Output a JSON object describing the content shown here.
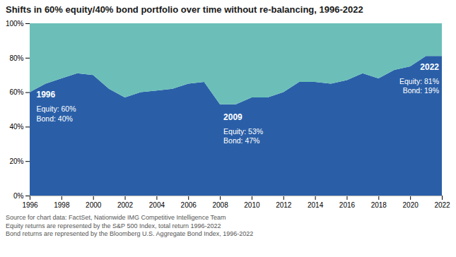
{
  "chart_data": {
    "type": "area",
    "stacked": true,
    "title": "Shifts in 60% equity/40% bond portfolio over time without re-balancing, 1996-2022",
    "x": [
      1996,
      1997,
      1998,
      1999,
      2000,
      2001,
      2002,
      2003,
      2004,
      2005,
      2006,
      2007,
      2008,
      2009,
      2010,
      2011,
      2012,
      2013,
      2014,
      2015,
      2016,
      2017,
      2018,
      2019,
      2020,
      2021,
      2022
    ],
    "series": [
      {
        "color": "#2A5FA8",
        "values": [
          60,
          65,
          68,
          71,
          70,
          62,
          57,
          60,
          61,
          62,
          65,
          66,
          53,
          53,
          57,
          57,
          60,
          66,
          66,
          65,
          67,
          71,
          68,
          73,
          75,
          81,
          81
        ]
      },
      {
        "color": "#6BBFB8",
        "values": [
          40,
          35,
          32,
          29,
          30,
          38,
          43,
          40,
          39,
          38,
          35,
          34,
          47,
          47,
          43,
          43,
          40,
          34,
          34,
          35,
          33,
          29,
          32,
          27,
          25,
          19,
          19
        ]
      }
    ],
    "xlim": [
      1996,
      2022
    ],
    "xticks": [
      1996,
      1998,
      2000,
      2002,
      2004,
      2006,
      2008,
      2010,
      2012,
      2014,
      2016,
      2018,
      2020,
      2022
    ],
    "ylim": [
      0,
      100
    ],
    "yticks": [
      {
        "value": 0,
        "label": "0%"
      },
      {
        "value": 20,
        "label": "20%"
      },
      {
        "value": 40,
        "label": "40%"
      },
      {
        "value": 60,
        "label": "60%"
      },
      {
        "value": 80,
        "label": "80%"
      },
      {
        "value": 100,
        "label": "100%"
      }
    ],
    "grid": false,
    "annotations": [
      {
        "title": "1996",
        "text": "Equity: 60%\nBond: 40%",
        "x": 1996.4,
        "y_title": 57,
        "y": 53
      },
      {
        "title": "2009",
        "text": "Equity: 53%\nBond: 47%",
        "x": 2008.2,
        "y_title": 44,
        "y": 40
      },
      {
        "title": "2022",
        "text": "Equity: 81%\nBond: 19%",
        "x": 2021.8,
        "y_title": 73,
        "y": 69
      }
    ],
    "notes": [
      "Source for chart data: FactSet, Nationwide IMG Competitive Intelligence Team",
      "Equity returns are represented by the S&P 500 Index, total return 1996-2022",
      "Bond returns are represented by the Bloomberg U.S. Aggregate Bond Index, 1996-2022"
    ]
  }
}
